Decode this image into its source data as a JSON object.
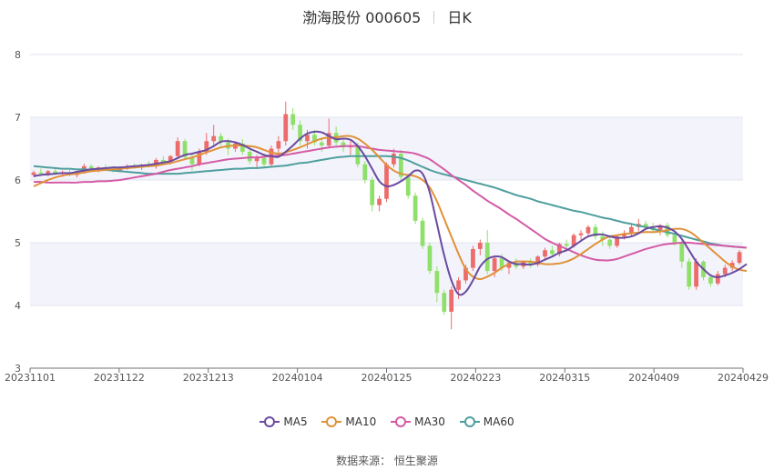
{
  "header": {
    "title": "渤海股份 000605",
    "period": "日K"
  },
  "source": "数据来源： 恒生聚源",
  "colors": {
    "up": "#ec6b6b",
    "down": "#8fe06a",
    "ma5": "#6a4aa0",
    "ma10": "#e0913a",
    "ma30": "#d45aa6",
    "ma60": "#4f9e9e"
  },
  "chart_data": {
    "type": "candlestick",
    "ylim": [
      3,
      8
    ],
    "yticks": [
      "3",
      "4",
      "5",
      "6",
      "7",
      "8"
    ],
    "xticks": [
      "20231101",
      "20231122",
      "20231213",
      "20240104",
      "20240125",
      "20240223",
      "20240315",
      "20240409",
      "20240429"
    ],
    "legend": [
      "MA5",
      "MA10",
      "MA30",
      "MA60"
    ],
    "ohlc": [
      [
        6.08,
        6.15,
        6.05,
        6.12
      ],
      [
        6.12,
        6.18,
        6.08,
        6.1
      ],
      [
        6.1,
        6.16,
        6.06,
        6.14
      ],
      [
        6.14,
        6.18,
        6.08,
        6.1
      ],
      [
        6.1,
        6.15,
        6.05,
        6.12
      ],
      [
        6.12,
        6.16,
        6.06,
        6.08
      ],
      [
        6.08,
        6.14,
        6.04,
        6.13
      ],
      [
        6.13,
        6.26,
        6.1,
        6.22
      ],
      [
        6.22,
        6.25,
        6.12,
        6.15
      ],
      [
        6.15,
        6.22,
        6.12,
        6.2
      ],
      [
        6.2,
        6.25,
        6.15,
        6.18
      ],
      [
        6.18,
        6.22,
        6.12,
        6.15
      ],
      [
        6.15,
        6.22,
        6.12,
        6.2
      ],
      [
        6.2,
        6.25,
        6.16,
        6.22
      ],
      [
        6.22,
        6.26,
        6.18,
        6.2
      ],
      [
        6.2,
        6.26,
        6.16,
        6.24
      ],
      [
        6.24,
        6.3,
        6.2,
        6.22
      ],
      [
        6.22,
        6.35,
        6.18,
        6.32
      ],
      [
        6.32,
        6.38,
        6.25,
        6.28
      ],
      [
        6.28,
        6.4,
        6.25,
        6.38
      ],
      [
        6.38,
        6.68,
        6.35,
        6.62
      ],
      [
        6.62,
        6.65,
        6.32,
        6.36
      ],
      [
        6.36,
        6.42,
        6.15,
        6.25
      ],
      [
        6.25,
        6.5,
        6.22,
        6.45
      ],
      [
        6.45,
        6.75,
        6.4,
        6.62
      ],
      [
        6.62,
        6.88,
        6.55,
        6.7
      ],
      [
        6.7,
        6.75,
        6.55,
        6.6
      ],
      [
        6.6,
        6.66,
        6.4,
        6.5
      ],
      [
        6.5,
        6.62,
        6.45,
        6.58
      ],
      [
        6.58,
        6.65,
        6.4,
        6.45
      ],
      [
        6.45,
        6.52,
        6.25,
        6.3
      ],
      [
        6.3,
        6.4,
        6.18,
        6.35
      ],
      [
        6.35,
        6.42,
        6.2,
        6.25
      ],
      [
        6.25,
        6.55,
        6.22,
        6.5
      ],
      [
        6.5,
        6.7,
        6.42,
        6.62
      ],
      [
        6.62,
        7.25,
        6.55,
        7.05
      ],
      [
        7.05,
        7.15,
        6.8,
        6.88
      ],
      [
        6.88,
        6.95,
        6.55,
        6.62
      ],
      [
        6.62,
        6.8,
        6.5,
        6.72
      ],
      [
        6.72,
        6.8,
        6.55,
        6.6
      ],
      [
        6.6,
        6.68,
        6.45,
        6.55
      ],
      [
        6.55,
        6.98,
        6.5,
        6.75
      ],
      [
        6.75,
        6.85,
        6.55,
        6.6
      ],
      [
        6.6,
        6.65,
        6.45,
        6.52
      ],
      [
        6.52,
        6.62,
        6.4,
        6.55
      ],
      [
        6.55,
        6.6,
        6.2,
        6.25
      ],
      [
        6.25,
        6.3,
        5.95,
        6.0
      ],
      [
        6.0,
        6.05,
        5.5,
        5.6
      ],
      [
        5.6,
        5.75,
        5.5,
        5.7
      ],
      [
        5.7,
        6.28,
        5.65,
        6.25
      ],
      [
        6.25,
        6.5,
        6.2,
        6.42
      ],
      [
        6.42,
        6.48,
        6.0,
        6.05
      ],
      [
        6.05,
        6.1,
        5.7,
        5.75
      ],
      [
        5.75,
        5.8,
        5.3,
        5.35
      ],
      [
        5.35,
        5.4,
        4.9,
        4.95
      ],
      [
        4.95,
        5.0,
        4.5,
        4.55
      ],
      [
        4.55,
        4.62,
        4.05,
        4.2
      ],
      [
        4.2,
        4.25,
        3.85,
        3.9
      ],
      [
        3.9,
        4.3,
        3.62,
        4.25
      ],
      [
        4.25,
        4.45,
        4.1,
        4.4
      ],
      [
        4.4,
        4.65,
        4.35,
        4.6
      ],
      [
        4.6,
        4.95,
        4.55,
        4.9
      ],
      [
        4.9,
        5.05,
        4.8,
        5.0
      ],
      [
        5.0,
        5.2,
        4.5,
        4.55
      ],
      [
        4.55,
        4.8,
        4.45,
        4.75
      ],
      [
        4.75,
        4.82,
        4.55,
        4.6
      ],
      [
        4.6,
        4.72,
        4.5,
        4.68
      ],
      [
        4.68,
        4.75,
        4.58,
        4.62
      ],
      [
        4.62,
        4.72,
        4.58,
        4.7
      ],
      [
        4.7,
        4.75,
        4.6,
        4.65
      ],
      [
        4.65,
        4.8,
        4.62,
        4.78
      ],
      [
        4.78,
        4.92,
        4.72,
        4.88
      ],
      [
        4.88,
        4.95,
        4.78,
        4.82
      ],
      [
        4.82,
        5.0,
        4.78,
        4.98
      ],
      [
        4.98,
        5.05,
        4.9,
        4.95
      ],
      [
        4.95,
        5.15,
        4.92,
        5.12
      ],
      [
        5.12,
        5.2,
        5.05,
        5.15
      ],
      [
        5.15,
        5.28,
        5.1,
        5.25
      ],
      [
        5.25,
        5.3,
        5.05,
        5.1
      ],
      [
        5.1,
        5.18,
        4.95,
        5.05
      ],
      [
        5.05,
        5.12,
        4.9,
        4.95
      ],
      [
        4.95,
        5.12,
        4.92,
        5.1
      ],
      [
        5.1,
        5.2,
        5.05,
        5.15
      ],
      [
        5.15,
        5.3,
        5.1,
        5.25
      ],
      [
        5.25,
        5.38,
        5.18,
        5.3
      ],
      [
        5.3,
        5.35,
        5.2,
        5.25
      ],
      [
        5.25,
        5.32,
        5.15,
        5.2
      ],
      [
        5.2,
        5.3,
        5.12,
        5.28
      ],
      [
        5.28,
        5.32,
        5.08,
        5.12
      ],
      [
        5.12,
        5.18,
        4.95,
        5.0
      ],
      [
        5.0,
        5.05,
        4.6,
        4.7
      ],
      [
        4.7,
        4.75,
        4.25,
        4.3
      ],
      [
        4.3,
        4.75,
        4.25,
        4.7
      ],
      [
        4.7,
        4.72,
        4.4,
        4.45
      ],
      [
        4.45,
        4.5,
        4.3,
        4.35
      ],
      [
        4.35,
        4.55,
        4.32,
        4.5
      ],
      [
        4.5,
        4.65,
        4.45,
        4.6
      ],
      [
        4.6,
        4.72,
        4.55,
        4.68
      ],
      [
        4.68,
        4.88,
        4.65,
        4.85
      ]
    ],
    "ma5": [
      6.06,
      6.08,
      6.09,
      6.1,
      6.11,
      6.11,
      6.13,
      6.15,
      6.17,
      6.18,
      6.19,
      6.2,
      6.2,
      6.21,
      6.22,
      6.23,
      6.24,
      6.26,
      6.28,
      6.3,
      6.35,
      6.4,
      6.42,
      6.45,
      6.48,
      6.54,
      6.61,
      6.62,
      6.6,
      6.56,
      6.5,
      6.45,
      6.4,
      6.38,
      6.37,
      6.45,
      6.55,
      6.66,
      6.74,
      6.77,
      6.76,
      6.7,
      6.65,
      6.66,
      6.64,
      6.54,
      6.38,
      6.18,
      5.98,
      5.9,
      5.92,
      5.98,
      6.06,
      6.15,
      6.1,
      5.8,
      5.3,
      4.8,
      4.4,
      4.18,
      4.22,
      4.4,
      4.62,
      4.74,
      4.78,
      4.77,
      4.7,
      4.66,
      4.66,
      4.65,
      4.68,
      4.73,
      4.78,
      4.84,
      4.88,
      4.95,
      5.03,
      5.1,
      5.13,
      5.13,
      5.1,
      5.08,
      5.08,
      5.1,
      5.15,
      5.22,
      5.25,
      5.26,
      5.24,
      5.18,
      5.06,
      4.88,
      4.7,
      4.58,
      4.48,
      4.45,
      4.48,
      4.52,
      4.58,
      4.66
    ],
    "ma10": [
      5.9,
      5.95,
      6.0,
      6.04,
      6.07,
      6.09,
      6.1,
      6.12,
      6.14,
      6.15,
      6.16,
      6.17,
      6.18,
      6.19,
      6.2,
      6.21,
      6.22,
      6.23,
      6.25,
      6.27,
      6.3,
      6.33,
      6.36,
      6.4,
      6.44,
      6.48,
      6.52,
      6.54,
      6.55,
      6.55,
      6.54,
      6.52,
      6.48,
      6.44,
      6.42,
      6.44,
      6.48,
      6.52,
      6.57,
      6.62,
      6.66,
      6.68,
      6.68,
      6.7,
      6.7,
      6.66,
      6.58,
      6.48,
      6.36,
      6.24,
      6.15,
      6.1,
      6.08,
      6.06,
      6.0,
      5.88,
      5.66,
      5.38,
      5.1,
      4.82,
      4.58,
      4.46,
      4.42,
      4.46,
      4.52,
      4.6,
      4.66,
      4.7,
      4.7,
      4.7,
      4.68,
      4.66,
      4.66,
      4.67,
      4.7,
      4.75,
      4.82,
      4.9,
      4.98,
      5.05,
      5.1,
      5.12,
      5.14,
      5.15,
      5.16,
      5.17,
      5.17,
      5.18,
      5.2,
      5.22,
      5.22,
      5.18,
      5.1,
      5.0,
      4.9,
      4.8,
      4.7,
      4.62,
      4.57,
      4.55
    ],
    "ma30": [
      5.97,
      5.97,
      5.96,
      5.96,
      5.96,
      5.96,
      5.96,
      5.97,
      5.97,
      5.98,
      5.98,
      5.99,
      6.0,
      6.02,
      6.04,
      6.06,
      6.08,
      6.1,
      6.13,
      6.16,
      6.18,
      6.2,
      6.22,
      6.25,
      6.27,
      6.29,
      6.31,
      6.33,
      6.34,
      6.35,
      6.36,
      6.36,
      6.37,
      6.38,
      6.39,
      6.4,
      6.42,
      6.44,
      6.46,
      6.48,
      6.5,
      6.52,
      6.53,
      6.54,
      6.54,
      6.54,
      6.52,
      6.5,
      6.48,
      6.47,
      6.46,
      6.45,
      6.44,
      6.42,
      6.38,
      6.33,
      6.25,
      6.17,
      6.08,
      6.0,
      5.92,
      5.83,
      5.75,
      5.67,
      5.6,
      5.53,
      5.45,
      5.38,
      5.3,
      5.22,
      5.14,
      5.06,
      5.0,
      4.95,
      4.9,
      4.85,
      4.8,
      4.76,
      4.73,
      4.72,
      4.72,
      4.74,
      4.78,
      4.82,
      4.86,
      4.9,
      4.93,
      4.96,
      4.98,
      4.99,
      5.0,
      5.0,
      4.99,
      4.98,
      4.97,
      4.96,
      4.95,
      4.94,
      4.93,
      4.92
    ],
    "ma60": [
      6.22,
      6.21,
      6.2,
      6.19,
      6.18,
      6.18,
      6.17,
      6.17,
      6.16,
      6.16,
      6.16,
      6.15,
      6.14,
      6.13,
      6.12,
      6.11,
      6.1,
      6.1,
      6.1,
      6.1,
      6.1,
      6.11,
      6.12,
      6.13,
      6.14,
      6.15,
      6.16,
      6.17,
      6.18,
      6.18,
      6.19,
      6.19,
      6.2,
      6.21,
      6.22,
      6.23,
      6.25,
      6.27,
      6.28,
      6.3,
      6.32,
      6.34,
      6.36,
      6.37,
      6.38,
      6.38,
      6.38,
      6.38,
      6.38,
      6.38,
      6.37,
      6.35,
      6.31,
      6.26,
      6.21,
      6.16,
      6.12,
      6.09,
      6.06,
      6.03,
      6.0,
      5.97,
      5.94,
      5.91,
      5.88,
      5.84,
      5.8,
      5.76,
      5.73,
      5.7,
      5.66,
      5.63,
      5.6,
      5.57,
      5.54,
      5.51,
      5.49,
      5.46,
      5.43,
      5.4,
      5.38,
      5.35,
      5.32,
      5.3,
      5.27,
      5.25,
      5.22,
      5.19,
      5.17,
      5.14,
      5.11,
      5.08,
      5.05,
      5.02,
      4.99,
      4.97,
      4.95,
      4.94,
      4.93,
      4.92
    ]
  }
}
